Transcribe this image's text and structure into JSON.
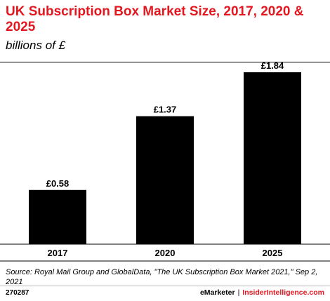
{
  "header": {
    "title": "UK Subscription Box Market Size, 2017, 2020 & 2025",
    "subtitle": "billions of £"
  },
  "chart_data": {
    "type": "bar",
    "categories": [
      "2017",
      "2020",
      "2025"
    ],
    "values": [
      0.58,
      1.37,
      1.84
    ],
    "value_labels": [
      "£0.58",
      "£1.37",
      "£1.84"
    ],
    "ylim": [
      0,
      1.84
    ],
    "grid": false,
    "bar_color": "#000000"
  },
  "footer": {
    "source": "Source: Royal Mail Group and GlobalData, \"The UK Subscription Box Market 2021,\" Sep 2, 2021",
    "chart_id": "270287",
    "brand_left": "eMarketer",
    "brand_sep": "|",
    "brand_right": "InsiderIntelligence.com"
  },
  "colors": {
    "accent": "#e2171f"
  }
}
